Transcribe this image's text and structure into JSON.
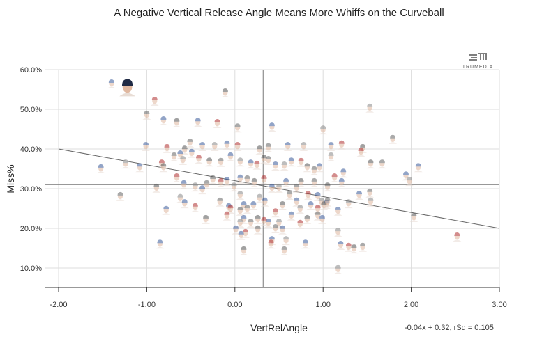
{
  "chart_data": {
    "type": "scatter",
    "title": "A Negative Vertical Release Angle Means More Whiffs on the Curveball",
    "xlabel": "VertRelAngle",
    "ylabel": "Miss%",
    "xlim": [
      -2,
      3
    ],
    "ylim": [
      5,
      60
    ],
    "x_ticks": [
      -2,
      -1,
      0,
      1,
      2,
      3
    ],
    "x_tick_labels": [
      "-2.00",
      "-1.00",
      "0.00",
      "1.00",
      "2.00",
      "3.00"
    ],
    "y_ticks": [
      10,
      20,
      30,
      40,
      50,
      60
    ],
    "y_tick_labels": [
      "10.0%",
      "20.0%",
      "30.0%",
      "40.0%",
      "50.0%",
      "60.0%"
    ],
    "grid": true,
    "marker": "player-headshot",
    "reference_lines": {
      "x_mean": 0.32,
      "y_mean": 31.0
    },
    "trendline": {
      "slope": -0.04,
      "intercept": 0.32,
      "rsq": 0.105,
      "label": "-0.04x + 0.32, rSq = 0.105"
    },
    "highlighted_point": [
      -1.22,
      55.6
    ],
    "points": [
      [
        -1.4,
        56.5
      ],
      [
        -0.91,
        52.1
      ],
      [
        -0.11,
        54.2
      ],
      [
        -1.0,
        48.6
      ],
      [
        -0.81,
        47.2
      ],
      [
        1.53,
        50.4
      ],
      [
        -0.42,
        46.8
      ],
      [
        -0.2,
        46.5
      ],
      [
        -0.66,
        46.7
      ],
      [
        0.03,
        45.4
      ],
      [
        0.42,
        45.6
      ],
      [
        1.0,
        44.9
      ],
      [
        -1.01,
        40.7
      ],
      [
        -0.77,
        40.2
      ],
      [
        -0.57,
        39.8
      ],
      [
        -0.51,
        41.6
      ],
      [
        -0.37,
        40.7
      ],
      [
        -0.23,
        40.7
      ],
      [
        -0.09,
        41.1
      ],
      [
        0.03,
        40.7
      ],
      [
        0.28,
        39.8
      ],
      [
        0.38,
        40.4
      ],
      [
        0.6,
        40.7
      ],
      [
        0.78,
        40.7
      ],
      [
        1.09,
        40.7
      ],
      [
        1.21,
        41.1
      ],
      [
        1.45,
        40.2
      ],
      [
        1.79,
        42.5
      ],
      [
        -1.52,
        35.1
      ],
      [
        -1.24,
        36.3
      ],
      [
        -1.08,
        35.4
      ],
      [
        -0.83,
        36.3
      ],
      [
        -0.81,
        35.4
      ],
      [
        -0.69,
        38.1
      ],
      [
        -0.62,
        38.6
      ],
      [
        -0.59,
        37.2
      ],
      [
        -0.49,
        39.0
      ],
      [
        -0.41,
        37.5
      ],
      [
        -0.29,
        36.8
      ],
      [
        -0.16,
        36.7
      ],
      [
        -0.05,
        38.1
      ],
      [
        0.06,
        36.8
      ],
      [
        0.18,
        36.3
      ],
      [
        0.25,
        36.0
      ],
      [
        0.33,
        37.5
      ],
      [
        0.38,
        37.2
      ],
      [
        0.46,
        35.8
      ],
      [
        0.56,
        35.8
      ],
      [
        0.64,
        36.8
      ],
      [
        0.75,
        36.7
      ],
      [
        0.82,
        35.4
      ],
      [
        0.9,
        34.6
      ],
      [
        0.96,
        35.4
      ],
      [
        1.09,
        38.1
      ],
      [
        1.23,
        34.0
      ],
      [
        1.43,
        39.3
      ],
      [
        1.54,
        36.3
      ],
      [
        1.67,
        36.3
      ],
      [
        1.94,
        33.3
      ],
      [
        1.98,
        31.9
      ],
      [
        2.08,
        35.4
      ],
      [
        2.52,
        17.9
      ],
      [
        2.03,
        22.8
      ],
      [
        1.53,
        29.0
      ],
      [
        1.41,
        28.4
      ],
      [
        1.54,
        26.7
      ],
      [
        1.21,
        31.6
      ],
      [
        1.13,
        32.8
      ],
      [
        1.05,
        30.5
      ],
      [
        0.9,
        31.6
      ],
      [
        0.94,
        28.1
      ],
      [
        0.98,
        26.7
      ],
      [
        1.04,
        26.1
      ],
      [
        0.83,
        28.4
      ],
      [
        0.75,
        31.6
      ],
      [
        0.7,
        30.2
      ],
      [
        0.58,
        31.6
      ],
      [
        0.5,
        30.2
      ],
      [
        0.42,
        30.2
      ],
      [
        0.33,
        32.3
      ],
      [
        0.22,
        31.6
      ],
      [
        0.14,
        32.3
      ],
      [
        0.06,
        32.5
      ],
      [
        -0.01,
        30.5
      ],
      [
        -0.09,
        31.9
      ],
      [
        -0.16,
        31.6
      ],
      [
        -0.25,
        32.3
      ],
      [
        -0.32,
        31.1
      ],
      [
        -0.37,
        29.8
      ],
      [
        -0.45,
        30.5
      ],
      [
        -0.58,
        31.1
      ],
      [
        -0.66,
        32.8
      ],
      [
        -0.89,
        30.2
      ],
      [
        -1.3,
        28.1
      ],
      [
        -0.78,
        24.6
      ],
      [
        -0.62,
        27.6
      ],
      [
        -0.57,
        26.3
      ],
      [
        -0.45,
        25.3
      ],
      [
        -0.33,
        22.3
      ],
      [
        -0.17,
        26.7
      ],
      [
        -0.07,
        25.3
      ],
      [
        0.06,
        28.4
      ],
      [
        0.1,
        25.8
      ],
      [
        -0.05,
        24.9
      ],
      [
        0.06,
        24.4
      ],
      [
        0.14,
        24.9
      ],
      [
        0.21,
        25.8
      ],
      [
        0.28,
        27.6
      ],
      [
        0.34,
        26.7
      ],
      [
        0.46,
        24.0
      ],
      [
        0.54,
        25.8
      ],
      [
        0.62,
        28.4
      ],
      [
        0.7,
        26.7
      ],
      [
        0.74,
        24.9
      ],
      [
        0.86,
        25.8
      ],
      [
        0.94,
        24.9
      ],
      [
        1.01,
        25.8
      ],
      [
        1.05,
        26.7
      ],
      [
        1.17,
        24.4
      ],
      [
        1.29,
        26.3
      ],
      [
        0.64,
        23.2
      ],
      [
        0.74,
        21.1
      ],
      [
        0.82,
        22.3
      ],
      [
        0.94,
        23.2
      ],
      [
        0.99,
        22.3
      ],
      [
        0.5,
        21.4
      ],
      [
        0.38,
        21.4
      ],
      [
        0.33,
        21.8
      ],
      [
        0.26,
        22.3
      ],
      [
        0.18,
        21.4
      ],
      [
        0.1,
        22.3
      ],
      [
        0.06,
        21.4
      ],
      [
        0.01,
        19.7
      ],
      [
        0.12,
        18.8
      ],
      [
        0.26,
        19.7
      ],
      [
        0.46,
        20.0
      ],
      [
        0.54,
        19.7
      ],
      [
        0.58,
        17.0
      ],
      [
        0.42,
        17.0
      ],
      [
        0.41,
        16.1
      ],
      [
        0.1,
        14.4
      ],
      [
        0.56,
        14.4
      ],
      [
        0.8,
        16.1
      ],
      [
        1.17,
        19.1
      ],
      [
        1.2,
        15.8
      ],
      [
        1.29,
        15.3
      ],
      [
        1.35,
        14.9
      ],
      [
        1.45,
        15.3
      ],
      [
        -0.85,
        16.1
      ],
      [
        1.17,
        9.7
      ],
      [
        0.07,
        18.3
      ],
      [
        -0.09,
        23.2
      ]
    ],
    "colors": {
      "grid": "#dddddd",
      "axis": "#333333",
      "trendline": "#666666",
      "mean_line": "#777777",
      "highlight_cap": "#1f2a44"
    }
  },
  "logo": {
    "text": "TRUMEDIA"
  }
}
